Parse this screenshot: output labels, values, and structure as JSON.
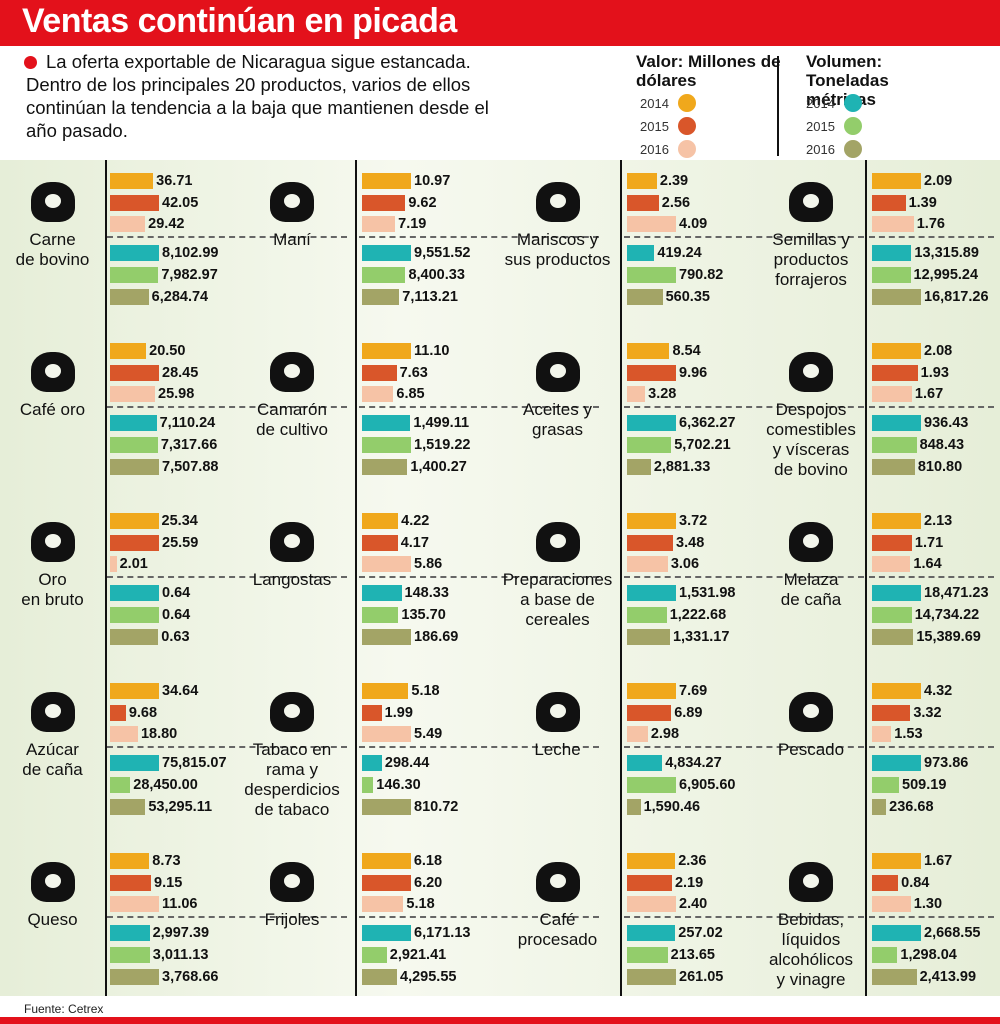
{
  "chart_data": {
    "type": "bar",
    "title": "Ventas continúan en picada",
    "subtitle": "La oferta exportable de Nicaragua sigue estancada. Dentro de los principales 20 productos, varios de ellos continúan la tendencia a la baja que mantienen desde el año pasado.",
    "legend": {
      "value_title": "Valor: Millones de dólares",
      "volume_title": "Volumen: Toneladas métricas",
      "years": [
        "2014",
        "2015",
        "2016"
      ],
      "value_colors": [
        "#f0a81c",
        "#d9562a",
        "#f6c3a6"
      ],
      "volume_colors": [
        "#1fb3b3",
        "#93cd6b",
        "#a3a466"
      ]
    },
    "products": [
      {
        "name": [
          "Carne",
          "de bovino"
        ],
        "values": [
          36.71,
          42.05,
          29.42
        ],
        "value_labels": [
          "36.71",
          "42.05",
          "29.42"
        ],
        "volumes": [
          8102.99,
          7982.97,
          6284.74
        ],
        "volume_labels": [
          "8,102.99",
          "7,982.97",
          "6,284.74"
        ]
      },
      {
        "name": [
          "Café oro"
        ],
        "values": [
          20.5,
          28.45,
          25.98
        ],
        "value_labels": [
          "20.50",
          "28.45",
          "25.98"
        ],
        "volumes": [
          7110.24,
          7317.66,
          7507.88
        ],
        "volume_labels": [
          "7,110.24",
          "7,317.66",
          "7,507.88"
        ]
      },
      {
        "name": [
          "Oro",
          "en bruto"
        ],
        "values": [
          25.34,
          25.59,
          2.01
        ],
        "value_labels": [
          "25.34",
          "25.59",
          "2.01"
        ],
        "volumes": [
          0.64,
          0.64,
          0.63
        ],
        "volume_labels": [
          "0.64",
          "0.64",
          "0.63"
        ]
      },
      {
        "name": [
          "Azúcar",
          "de caña"
        ],
        "values": [
          34.64,
          9.68,
          18.8
        ],
        "value_labels": [
          "34.64",
          "9.68",
          "18.80"
        ],
        "volumes": [
          75815.07,
          28450.0,
          53295.11
        ],
        "volume_labels": [
          "75,815.07",
          "28,450.00",
          "53,295.11"
        ]
      },
      {
        "name": [
          "Queso"
        ],
        "values": [
          8.73,
          9.15,
          11.06
        ],
        "value_labels": [
          "8.73",
          "9.15",
          "11.06"
        ],
        "volumes": [
          2997.39,
          3011.13,
          3768.66
        ],
        "volume_labels": [
          "2,997.39",
          "3,011.13",
          "3,768.66"
        ]
      },
      {
        "name": [
          "Maní"
        ],
        "values": [
          10.97,
          9.62,
          7.19
        ],
        "value_labels": [
          "10.97",
          "9.62",
          "7.19"
        ],
        "volumes": [
          9551.52,
          8400.33,
          7113.21
        ],
        "volume_labels": [
          "9,551.52",
          "8,400.33",
          "7,113.21"
        ]
      },
      {
        "name": [
          "Camarón",
          "de cultivo"
        ],
        "values": [
          11.1,
          7.63,
          6.85
        ],
        "value_labels": [
          "11.10",
          "7.63",
          "6.85"
        ],
        "volumes": [
          1499.11,
          1519.22,
          1400.27
        ],
        "volume_labels": [
          "1,499.11",
          "1,519.22",
          "1,400.27"
        ]
      },
      {
        "name": [
          "Langostas"
        ],
        "values": [
          4.22,
          4.17,
          5.86
        ],
        "value_labels": [
          "4.22",
          "4.17",
          "5.86"
        ],
        "volumes": [
          148.33,
          135.7,
          186.69
        ],
        "volume_labels": [
          "148.33",
          "135.70",
          "186.69"
        ]
      },
      {
        "name": [
          "Tabaco en",
          "rama y",
          "desperdicios",
          "de tabaco"
        ],
        "values": [
          5.18,
          1.99,
          5.49
        ],
        "value_labels": [
          "5.18",
          "1.99",
          "5.49"
        ],
        "volumes": [
          298.44,
          146.3,
          810.72
        ],
        "volume_labels": [
          "298.44",
          "146.30",
          "810.72"
        ]
      },
      {
        "name": [
          "Frijoles"
        ],
        "values": [
          6.18,
          6.2,
          5.18
        ],
        "value_labels": [
          "6.18",
          "6.20",
          "5.18"
        ],
        "volumes": [
          6171.13,
          2921.41,
          4295.55
        ],
        "volume_labels": [
          "6,171.13",
          "2,921.41",
          "4,295.55"
        ]
      },
      {
        "name": [
          "Mariscos y",
          "sus productos"
        ],
        "values": [
          2.39,
          2.56,
          4.09
        ],
        "value_labels": [
          "2.39",
          "2.56",
          "4.09"
        ],
        "volumes": [
          419.24,
          790.82,
          560.35
        ],
        "volume_labels": [
          "419.24",
          "790.82",
          "560.35"
        ]
      },
      {
        "name": [
          "Aceites y",
          "grasas"
        ],
        "values": [
          8.54,
          9.96,
          3.28
        ],
        "value_labels": [
          "8.54",
          "9.96",
          "3.28"
        ],
        "volumes": [
          6362.27,
          5702.21,
          2881.33
        ],
        "volume_labels": [
          "6,362.27",
          "5,702.21",
          "2,881.33"
        ]
      },
      {
        "name": [
          "Preparaciones",
          "a base de",
          "cereales"
        ],
        "values": [
          3.72,
          3.48,
          3.06
        ],
        "value_labels": [
          "3.72",
          "3.48",
          "3.06"
        ],
        "volumes": [
          1531.98,
          1222.68,
          1331.17
        ],
        "volume_labels": [
          "1,531.98",
          "1,222.68",
          "1,331.17"
        ]
      },
      {
        "name": [
          "Leche"
        ],
        "values": [
          7.69,
          6.89,
          2.98
        ],
        "value_labels": [
          "7.69",
          "6.89",
          "2.98"
        ],
        "volumes": [
          4834.27,
          6905.6,
          1590.46
        ],
        "volume_labels": [
          "4,834.27",
          "6,905.60",
          "1,590.46"
        ]
      },
      {
        "name": [
          "Café",
          "procesado"
        ],
        "values": [
          2.36,
          2.19,
          2.4
        ],
        "value_labels": [
          "2.36",
          "2.19",
          "2.40"
        ],
        "volumes": [
          257.02,
          213.65,
          261.05
        ],
        "volume_labels": [
          "257.02",
          "213.65",
          "261.05"
        ]
      },
      {
        "name": [
          "Semillas y",
          "productos",
          "forrajeros"
        ],
        "values": [
          2.09,
          1.39,
          1.76
        ],
        "value_labels": [
          "2.09",
          "1.39",
          "1.76"
        ],
        "volumes": [
          13315.89,
          12995.24,
          16817.26
        ],
        "volume_labels": [
          "13,315.89",
          "12,995.24",
          "16,817.26"
        ]
      },
      {
        "name": [
          "Despojos",
          "comestibles",
          "y vísceras",
          "de bovino"
        ],
        "values": [
          2.08,
          1.93,
          1.67
        ],
        "value_labels": [
          "2.08",
          "1.93",
          "1.67"
        ],
        "volumes": [
          936.43,
          848.43,
          810.8
        ],
        "volume_labels": [
          "936.43",
          "848.43",
          "810.80"
        ]
      },
      {
        "name": [
          "Melaza",
          "de caña"
        ],
        "values": [
          2.13,
          1.71,
          1.64
        ],
        "value_labels": [
          "2.13",
          "1.71",
          "1.64"
        ],
        "volumes": [
          18471.23,
          14734.22,
          15389.69
        ],
        "volume_labels": [
          "18,471.23",
          "14,734.22",
          "15,389.69"
        ]
      },
      {
        "name": [
          "Pescado"
        ],
        "values": [
          4.32,
          3.32,
          1.53
        ],
        "value_labels": [
          "4.32",
          "3.32",
          "1.53"
        ],
        "volumes": [
          973.86,
          509.19,
          236.68
        ],
        "volume_labels": [
          "973.86",
          "509.19",
          "236.68"
        ]
      },
      {
        "name": [
          "Bebidas,",
          "líquidos",
          "alcohólicos",
          "y vinagre"
        ],
        "values": [
          1.67,
          0.84,
          1.3
        ],
        "value_labels": [
          "1.67",
          "0.84",
          "1.30"
        ],
        "volumes": [
          2668.55,
          1298.04,
          2413.99
        ],
        "volume_labels": [
          "2,668.55",
          "1,298.04",
          "2,413.99"
        ]
      }
    ],
    "source": "Fuente: Cetrex"
  }
}
